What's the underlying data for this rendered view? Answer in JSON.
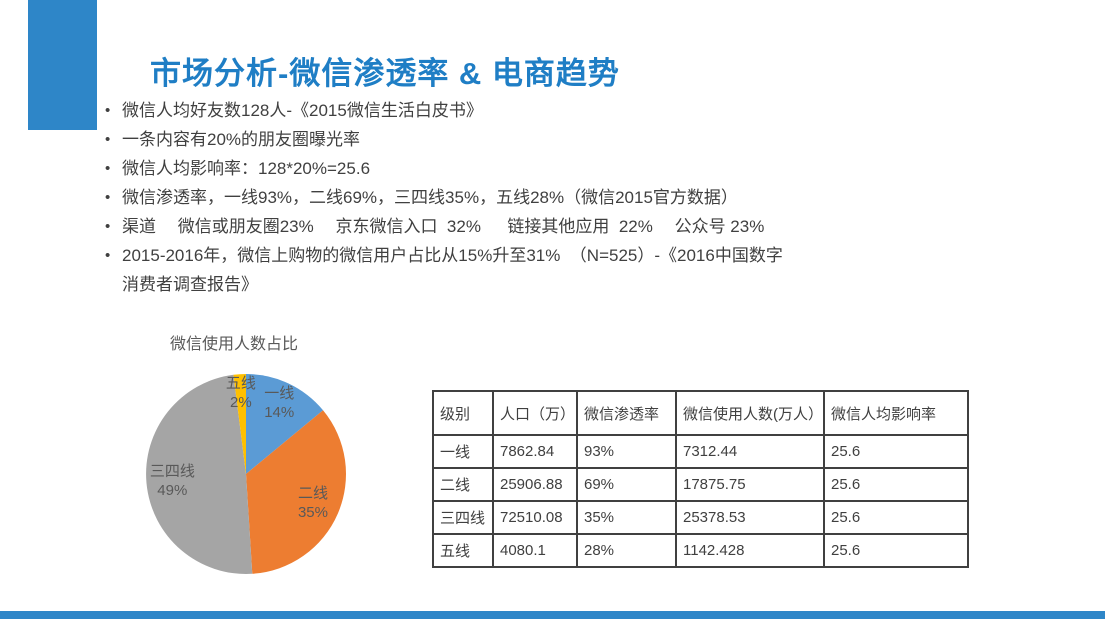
{
  "slide": {
    "title": "市场分析-微信渗透率 & 电商趋势"
  },
  "bullets": [
    {
      "marker": "•",
      "text": "微信人均好友数128人-《2015微信生活白皮书》"
    },
    {
      "marker": "•",
      "text": "一条内容有20%的朋友圈曝光率"
    },
    {
      "marker": "•",
      "text": "微信人均影响率：128*20%=25.6"
    },
    {
      "marker": "•",
      "text": "微信渗透率，一线93%，二线69%，三四线35%，五线28%（微信2015官方数据）"
    },
    {
      "marker": "•",
      "text": "渠道　 微信或朋友圈23%　 京东微信入口  32%　  链接其他应用  22%　 公众号 23%"
    },
    {
      "marker": "•",
      "text": "2015-2016年，微信上购物的微信用户占比从15%升至31%  （N=525）-《2016中国数字"
    },
    {
      "marker": "",
      "text": "消费者调查报告》"
    }
  ],
  "chart_data": {
    "type": "pie",
    "title": "微信使用人数占比",
    "categories": [
      "一线",
      "二线",
      "三四线",
      "五线"
    ],
    "values": [
      14,
      35,
      49,
      2
    ],
    "colors": [
      "#5B9BD5",
      "#ED7D31",
      "#A5A5A5",
      "#FFC000"
    ],
    "start_angle_deg": 0,
    "direction": "clockwise",
    "label_format": "name + percent",
    "legend": "none"
  },
  "table": {
    "headers": [
      "级别",
      "人口（万）",
      "微信渗透率",
      "微信使用人数(万人）",
      "微信人均影响率"
    ],
    "rows": [
      [
        "一线",
        "7862.84",
        "93%",
        "7312.44",
        "25.6"
      ],
      [
        "二线",
        "25906.88",
        "69%",
        "17875.75",
        "25.6"
      ],
      [
        "三四线",
        "72510.08",
        "35%",
        "25378.53",
        "25.6"
      ],
      [
        "五线",
        "4080.1",
        "28%",
        "1142.428",
        "25.6"
      ]
    ]
  },
  "colors": {
    "accent_blue": "#2E86C8",
    "title_blue": "#1F7EC5",
    "body_text": "#404040",
    "chart_label_text": "#595959",
    "table_border": "#404040"
  }
}
